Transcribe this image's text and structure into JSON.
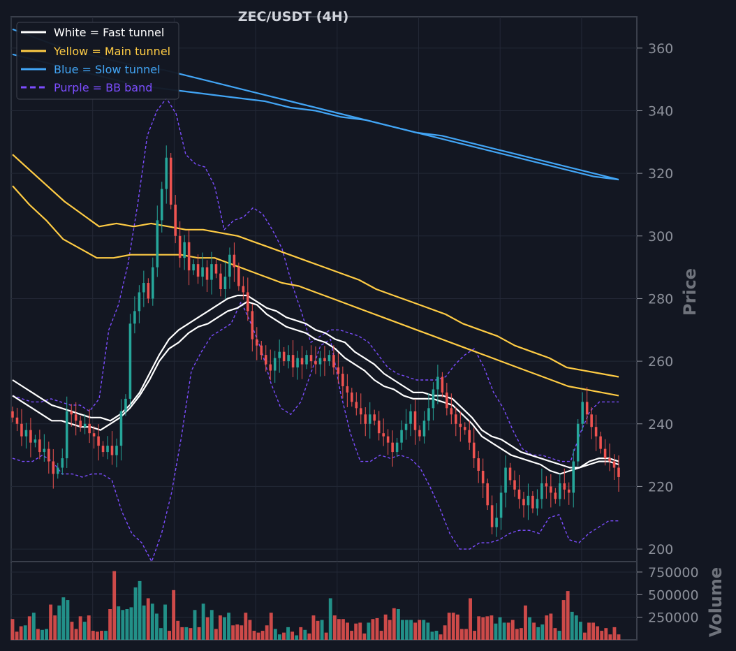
{
  "chart_data": [
    {
      "type": "candlestick",
      "title": "ZEC/USDT (4H)",
      "ylabel": "Price",
      "ylim": [
        196,
        370
      ],
      "yticks": [
        200,
        220,
        240,
        260,
        280,
        300,
        320,
        340,
        360
      ],
      "grid": true,
      "legend_position": "top-left",
      "colors": {
        "background": "#131722",
        "grid": "#232836",
        "up": "#26a69a",
        "down": "#ef5350",
        "fast": "#ffffff",
        "main": "#ffcc44",
        "slow": "#42a5f5",
        "bb": "#7c4dff"
      },
      "legend": [
        {
          "label": "White = Fast tunnel",
          "color": "#ffffff",
          "dashed": false
        },
        {
          "label": "Yellow = Main tunnel",
          "color": "#ffcc44",
          "dashed": false
        },
        {
          "label": "Blue = Slow tunnel",
          "color": "#42a5f5",
          "dashed": false
        },
        {
          "label": "Purple = BB band",
          "color": "#7c4dff",
          "dashed": true
        }
      ],
      "closes": [
        242,
        240,
        236,
        238,
        234,
        235,
        231,
        232,
        228,
        224,
        226,
        229,
        244,
        243,
        241,
        239,
        240,
        237,
        236,
        233,
        231,
        233,
        230,
        233,
        244,
        248,
        272,
        276,
        282,
        285,
        280,
        290,
        305,
        315,
        325,
        310,
        300,
        293,
        298,
        289,
        291,
        287,
        290,
        286,
        291,
        288,
        283,
        287,
        294,
        290,
        284,
        282,
        276,
        267,
        265,
        262,
        259,
        257,
        261,
        263,
        260,
        262,
        258,
        261,
        259,
        262,
        260,
        259,
        261,
        260,
        262,
        258,
        256,
        252,
        250,
        247,
        245,
        243,
        240,
        243,
        241,
        237,
        236,
        234,
        231,
        234,
        238,
        240,
        244,
        238,
        236,
        241,
        245,
        251,
        255,
        250,
        245,
        243,
        240,
        239,
        238,
        234,
        229,
        225,
        221,
        214,
        207,
        210,
        218,
        226,
        222,
        219,
        216,
        214,
        217,
        213,
        216,
        221,
        220,
        218,
        216,
        221,
        219,
        218,
        228,
        240,
        247,
        243,
        239,
        236,
        232,
        229,
        228,
        226,
        223
      ],
      "bands": {
        "fast_upper": [
          254,
          252,
          250,
          248,
          246,
          245,
          244,
          243,
          242,
          242,
          241,
          243,
          246,
          250,
          256,
          262,
          267,
          270,
          272,
          274,
          276,
          278,
          280,
          281,
          281,
          279,
          277,
          276,
          274,
          273,
          272,
          270,
          269,
          267,
          266,
          263,
          261,
          259,
          256,
          254,
          252,
          250,
          250,
          249,
          249,
          248,
          245,
          242,
          238,
          236,
          235,
          233,
          231,
          230,
          229,
          228,
          227,
          226,
          226,
          228,
          229,
          229,
          228
        ],
        "fast_lower": [
          249,
          247,
          245,
          243,
          241,
          241,
          240,
          239,
          239,
          238,
          240,
          242,
          245,
          249,
          254,
          260,
          264,
          266,
          269,
          271,
          272,
          274,
          276,
          277,
          279,
          278,
          275,
          273,
          271,
          270,
          269,
          267,
          266,
          264,
          261,
          259,
          257,
          254,
          252,
          251,
          249,
          248,
          248,
          248,
          247,
          246,
          243,
          240,
          236,
          234,
          232,
          230,
          229,
          228,
          227,
          225,
          224,
          225,
          226,
          227,
          228,
          228,
          227
        ],
        "main_upper": [
          326,
          321,
          316,
          311,
          307,
          303,
          304,
          303,
          304,
          303,
          302,
          302,
          301,
          300,
          298,
          296,
          294,
          292,
          290,
          288,
          286,
          283,
          281,
          279,
          277,
          275,
          272,
          270,
          268,
          265,
          263,
          261,
          258,
          257,
          256,
          255
        ],
        "main_lower": [
          316,
          310,
          305,
          299,
          296,
          293,
          293,
          294,
          294,
          294,
          294,
          293,
          293,
          291,
          289,
          287,
          285,
          284,
          282,
          280,
          278,
          276,
          274,
          272,
          270,
          268,
          266,
          264,
          262,
          260,
          258,
          256,
          254,
          252,
          251,
          250,
          249
        ],
        "slow_upper": [
          366,
          363,
          360,
          358,
          356,
          354,
          353,
          351,
          349,
          347,
          345,
          343,
          341,
          339,
          337,
          335,
          333,
          331,
          329,
          327,
          325,
          323,
          321,
          319,
          318
        ],
        "slow_lower": [
          358,
          356,
          354,
          352,
          350,
          348,
          347,
          346,
          345,
          344,
          343,
          341,
          340,
          338,
          337,
          335,
          333,
          332,
          330,
          328,
          326,
          324,
          322,
          320,
          318
        ],
        "bb_upper": [
          249,
          248,
          247,
          247,
          248,
          247,
          246,
          246,
          244,
          248,
          270,
          278,
          291,
          310,
          332,
          340,
          344,
          339,
          326,
          323,
          322,
          316,
          302,
          305,
          306,
          309,
          307,
          302,
          296,
          285,
          276,
          266,
          268,
          270,
          270,
          269,
          268,
          266,
          262,
          258,
          256,
          255,
          254,
          254,
          254,
          255,
          259,
          262,
          264,
          258,
          250,
          245,
          238,
          232,
          230,
          230,
          229,
          228,
          228,
          237,
          244,
          247,
          247,
          247
        ],
        "bb_lower": [
          229,
          228,
          228,
          230,
          228,
          224,
          224,
          223,
          224,
          224,
          222,
          212,
          205,
          202,
          196,
          205,
          218,
          236,
          257,
          263,
          268,
          270,
          272,
          279,
          272,
          264,
          253,
          245,
          243,
          247,
          256,
          265,
          267,
          250,
          237,
          228,
          228,
          230,
          229,
          230,
          229,
          226,
          220,
          213,
          205,
          200,
          200,
          202,
          202,
          203,
          205,
          206,
          206,
          205,
          210,
          211,
          203,
          202,
          205,
          207,
          209,
          209
        ]
      }
    },
    {
      "type": "bar",
      "ylabel": "Volume",
      "ylim": [
        0,
        850000
      ],
      "yticks": [
        250000,
        500000,
        750000
      ],
      "ytick_labels": [
        "250000",
        "500000",
        "750000"
      ],
      "values": [
        230000,
        90000,
        150000,
        160000,
        260000,
        300000,
        120000,
        110000,
        120000,
        390000,
        270000,
        380000,
        470000,
        440000,
        200000,
        120000,
        260000,
        200000,
        270000,
        100000,
        90000,
        100000,
        100000,
        340000,
        760000,
        370000,
        330000,
        340000,
        360000,
        580000,
        650000,
        380000,
        460000,
        400000,
        290000,
        130000,
        390000,
        100000,
        550000,
        210000,
        140000,
        140000,
        130000,
        330000,
        140000,
        400000,
        250000,
        330000,
        120000,
        270000,
        250000,
        300000,
        160000,
        170000,
        160000,
        300000,
        220000,
        100000,
        80000,
        100000,
        160000,
        300000,
        120000,
        60000,
        80000,
        140000,
        90000,
        50000,
        140000,
        110000,
        70000,
        270000,
        210000,
        220000,
        80000,
        460000,
        270000,
        230000,
        230000,
        190000,
        100000,
        180000,
        190000,
        70000,
        190000,
        230000,
        240000,
        100000,
        280000,
        220000,
        350000,
        340000,
        220000,
        220000,
        220000,
        190000,
        220000,
        220000,
        190000,
        90000,
        100000,
        60000,
        160000,
        300000,
        300000,
        280000,
        120000,
        120000,
        460000,
        100000,
        260000,
        250000,
        260000,
        270000,
        180000,
        250000,
        190000,
        190000,
        220000,
        120000,
        130000,
        380000,
        250000,
        190000,
        140000,
        170000,
        270000,
        290000,
        130000,
        100000,
        440000,
        540000,
        310000,
        270000,
        200000,
        80000,
        190000,
        190000,
        150000,
        100000,
        130000,
        60000,
        140000,
        60000
      ]
    }
  ]
}
